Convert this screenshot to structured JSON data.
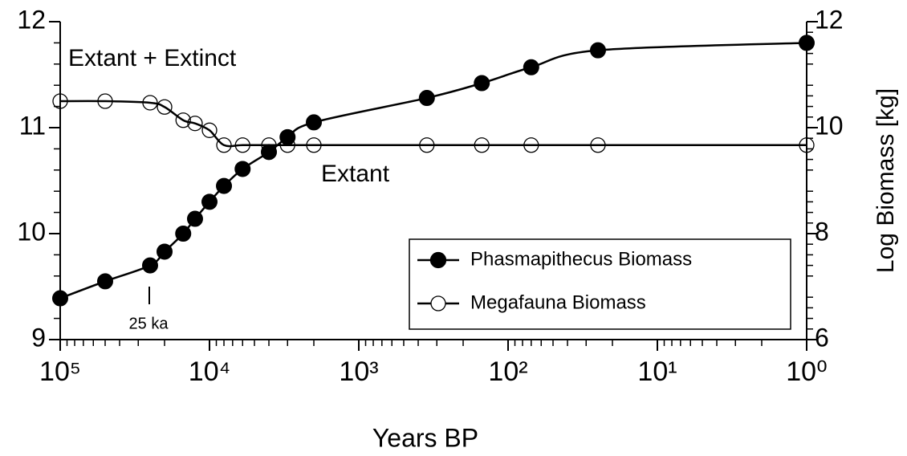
{
  "chart_data": {
    "type": "line",
    "x": [
      100000,
      50000,
      25000,
      20000,
      15000,
      12500,
      10000,
      8000,
      6000,
      4000,
      3000,
      2000,
      350,
      150,
      70,
      25,
      1
    ],
    "series": [
      {
        "name": "Phasmapithecus Biomass",
        "color": "#000000",
        "filled": true,
        "values": [
          9.39,
          9.55,
          9.7,
          9.83,
          10.0,
          10.14,
          10.3,
          10.45,
          10.61,
          10.77,
          10.91,
          11.05,
          11.28,
          11.42,
          11.57,
          11.73,
          11.8
        ]
      },
      {
        "name": "Megafauna Biomass",
        "color": "#000000",
        "filled": false,
        "axis": "y2",
        "values": [
          10.5,
          10.5,
          10.47,
          10.39,
          10.14,
          10.08,
          9.95,
          9.67,
          9.67,
          9.67,
          9.67,
          9.67,
          9.67,
          9.67,
          9.67,
          9.67,
          9.67
        ]
      }
    ],
    "xlabel": "Years BP",
    "y2label": "Log Biomass [kg]",
    "xscale": "log",
    "xlim": [
      100000,
      1
    ],
    "xticks": [
      {
        "value": 100000,
        "label": "10⁵"
      },
      {
        "value": 10000,
        "label": "10⁴"
      },
      {
        "value": 1000,
        "label": "10³"
      },
      {
        "value": 100,
        "label": "10²"
      },
      {
        "value": 10,
        "label": "10¹"
      },
      {
        "value": 1,
        "label": "10⁰"
      }
    ],
    "ylim": [
      9,
      12
    ],
    "yticks": [
      9,
      10,
      11,
      12
    ],
    "y2lim": [
      6,
      12
    ],
    "y2ticks": [
      6,
      8,
      10,
      12
    ],
    "annotations": [
      "Extant + Extinct",
      "Extant",
      "25 ka"
    ],
    "legend": "lower right",
    "grid": false
  }
}
